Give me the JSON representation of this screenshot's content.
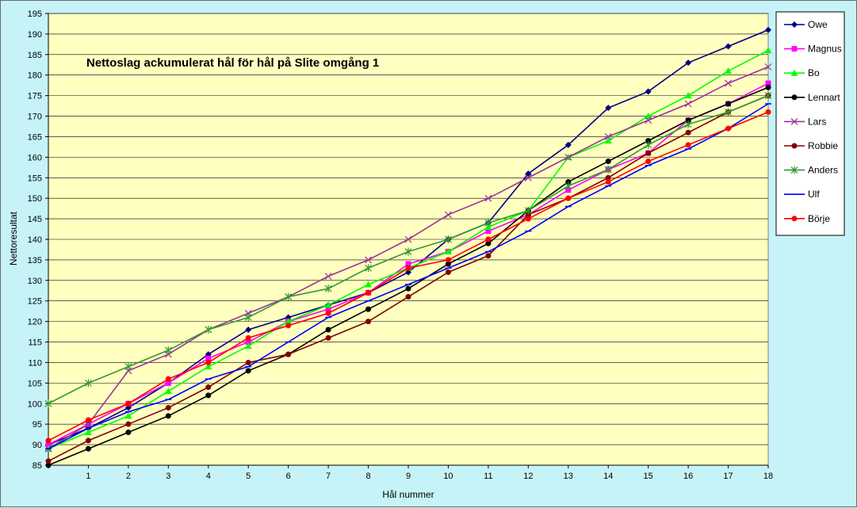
{
  "chart_data": {
    "type": "line",
    "title": "Nettoslag ackumulerat hål för hål på Slite omgång 1",
    "xlabel": "Hål nummer",
    "ylabel": "Nettoresultat",
    "x": [
      0,
      1,
      2,
      3,
      4,
      5,
      6,
      7,
      8,
      9,
      10,
      11,
      12,
      13,
      14,
      15,
      16,
      17,
      18
    ],
    "x_tick_labels": [
      "",
      "1",
      "2",
      "3",
      "4",
      "5",
      "6",
      "7",
      "8",
      "9",
      "10",
      "11",
      "12",
      "13",
      "14",
      "15",
      "16",
      "17",
      "18"
    ],
    "xlim": [
      0,
      18
    ],
    "ylim": [
      85,
      195
    ],
    "y_ticks": [
      85,
      90,
      95,
      100,
      105,
      110,
      115,
      120,
      125,
      130,
      135,
      140,
      145,
      150,
      155,
      160,
      165,
      170,
      175,
      180,
      185,
      190,
      195
    ],
    "grid": true,
    "legend_position": "right",
    "plot_background": "#ffffc0",
    "series": [
      {
        "name": "Owe",
        "color": "#000080",
        "marker": "diamond",
        "values": [
          90,
          94,
          99,
          105,
          112,
          118,
          121,
          124,
          127,
          132,
          140,
          144,
          156,
          163,
          172,
          176,
          183,
          187,
          191
        ]
      },
      {
        "name": "Magnus",
        "color": "#ff00ff",
        "marker": "square",
        "values": [
          90,
          95,
          100,
          105,
          111,
          115,
          120,
          123,
          127,
          134,
          137,
          142,
          146,
          152,
          157,
          161,
          169,
          173,
          178
        ]
      },
      {
        "name": "Bo",
        "color": "#00ff00",
        "marker": "triangle",
        "values": [
          89,
          93,
          97,
          103,
          109,
          114,
          120,
          124,
          129,
          133,
          137,
          143,
          147,
          160,
          164,
          170,
          175,
          181,
          186
        ]
      },
      {
        "name": "Lennart",
        "color": "#000000",
        "marker": "circle",
        "values": [
          85,
          89,
          93,
          97,
          102,
          108,
          112,
          118,
          123,
          128,
          134,
          139,
          147,
          154,
          159,
          164,
          169,
          173,
          177
        ]
      },
      {
        "name": "Lars",
        "color": "#993399",
        "marker": "x",
        "values": [
          89,
          95,
          108,
          112,
          118,
          122,
          126,
          131,
          135,
          140,
          146,
          150,
          155,
          160,
          165,
          169,
          173,
          178,
          182
        ]
      },
      {
        "name": "Robbie",
        "color": "#800000",
        "marker": "circle",
        "values": [
          86,
          91,
          95,
          99,
          104,
          110,
          112,
          116,
          120,
          126,
          132,
          136,
          146,
          150,
          155,
          161,
          166,
          171,
          175
        ]
      },
      {
        "name": "Anders",
        "color": "#339933",
        "marker": "star",
        "values": [
          100,
          105,
          109,
          113,
          118,
          121,
          126,
          128,
          133,
          137,
          140,
          144,
          147,
          153,
          157,
          163,
          168,
          171,
          175
        ]
      },
      {
        "name": "Ulf",
        "color": "#0000ff",
        "marker": "dash",
        "values": [
          89,
          94,
          98,
          101,
          106,
          109,
          115,
          121,
          125,
          129,
          133,
          137,
          142,
          148,
          153,
          158,
          162,
          167,
          173
        ]
      },
      {
        "name": "Börje",
        "color": "#ff0000",
        "marker": "circle",
        "values": [
          91,
          96,
          100,
          106,
          110,
          116,
          119,
          122,
          127,
          133,
          135,
          140,
          145,
          150,
          154,
          159,
          163,
          167,
          171
        ]
      }
    ]
  }
}
